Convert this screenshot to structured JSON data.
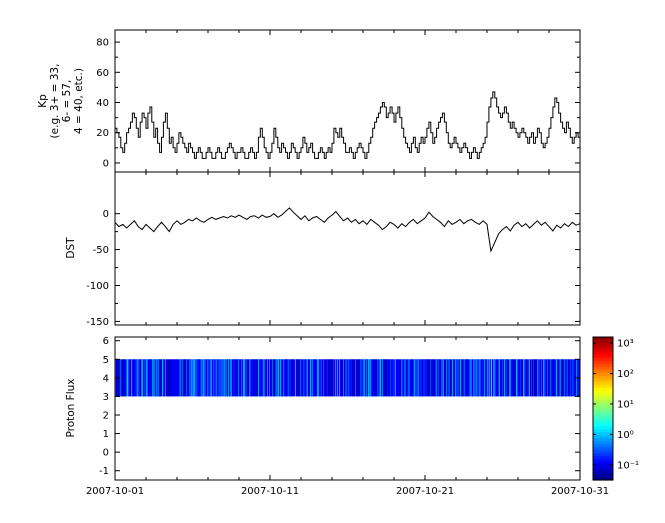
{
  "figure": {
    "background": "#ffffff",
    "axis_color": "#000000",
    "x_tick_labels": [
      "2007-10-01",
      "2007-10-11",
      "2007-10-21",
      "2007-10-31"
    ],
    "x_tick_days": [
      0,
      10,
      20,
      30
    ],
    "x_minor_step": 2,
    "x_total_days": 30
  },
  "chart_data": [
    {
      "type": "line",
      "name": "kp",
      "ylabel": "Kp (e.g. 3+ = 33, 6- = 57, 4 = 40, etc.)",
      "ylabel_lines": [
        "Kp",
        "(e.g. 3+ = 33,",
        "6- = 57,",
        "4 = 40, etc.)"
      ],
      "line_style": "step",
      "color": "#000000",
      "ylim": [
        -6,
        88
      ],
      "yticks": [
        0,
        20,
        40,
        60,
        80
      ],
      "yticks_minor": [
        10,
        30,
        50,
        70
      ],
      "x_start": "2007-10-01",
      "x_end": "2007-10-31",
      "points_per_day": 8,
      "values": [
        23,
        20,
        17,
        10,
        7,
        13,
        20,
        23,
        27,
        33,
        30,
        23,
        17,
        27,
        33,
        30,
        23,
        33,
        37,
        27,
        17,
        23,
        13,
        7,
        17,
        27,
        33,
        23,
        13,
        17,
        10,
        7,
        13,
        20,
        17,
        13,
        10,
        7,
        13,
        10,
        7,
        3,
        7,
        10,
        7,
        3,
        3,
        7,
        10,
        7,
        3,
        3,
        7,
        10,
        7,
        3,
        3,
        7,
        10,
        13,
        10,
        7,
        3,
        7,
        7,
        10,
        7,
        3,
        3,
        7,
        10,
        7,
        3,
        7,
        17,
        23,
        17,
        10,
        7,
        3,
        7,
        13,
        23,
        17,
        10,
        7,
        13,
        10,
        7,
        3,
        7,
        13,
        10,
        7,
        3,
        7,
        10,
        17,
        13,
        7,
        10,
        13,
        7,
        3,
        3,
        7,
        10,
        7,
        3,
        7,
        10,
        7,
        13,
        23,
        20,
        17,
        23,
        17,
        13,
        7,
        7,
        10,
        7,
        3,
        7,
        10,
        13,
        10,
        7,
        3,
        7,
        13,
        17,
        23,
        27,
        30,
        33,
        37,
        40,
        37,
        30,
        33,
        37,
        33,
        27,
        33,
        37,
        30,
        23,
        17,
        13,
        10,
        7,
        13,
        17,
        10,
        7,
        13,
        17,
        13,
        17,
        23,
        27,
        20,
        13,
        17,
        23,
        27,
        30,
        33,
        27,
        20,
        13,
        10,
        13,
        17,
        13,
        10,
        7,
        10,
        13,
        10,
        7,
        3,
        7,
        10,
        7,
        3,
        7,
        10,
        13,
        17,
        27,
        37,
        43,
        47,
        43,
        37,
        33,
        30,
        33,
        37,
        33,
        27,
        23,
        27,
        23,
        20,
        17,
        20,
        23,
        20,
        17,
        13,
        17,
        20,
        13,
        17,
        23,
        20,
        13,
        10,
        13,
        17,
        23,
        30,
        37,
        43,
        40,
        33,
        27,
        23,
        20,
        27,
        23,
        17,
        13,
        17,
        20,
        17
      ]
    },
    {
      "type": "line",
      "name": "dst",
      "ylabel": "DST",
      "line_style": "linear",
      "color": "#000000",
      "ylim": [
        -155,
        58
      ],
      "yticks": [
        0,
        -50,
        -100,
        -150
      ],
      "yticks_minor": [
        -25,
        -75,
        -125
      ],
      "x_start": "2007-10-01",
      "x_end": "2007-10-31",
      "points_per_day": 4,
      "values": [
        -12,
        -18,
        -15,
        -20,
        -15,
        -10,
        -18,
        -22,
        -15,
        -20,
        -25,
        -18,
        -12,
        -18,
        -25,
        -15,
        -10,
        -15,
        -12,
        -8,
        -10,
        -6,
        -10,
        -12,
        -8,
        -5,
        -8,
        -6,
        -4,
        -6,
        -3,
        -5,
        -2,
        -5,
        -8,
        -4,
        -3,
        -6,
        -2,
        -5,
        -4,
        0,
        -5,
        -2,
        3,
        8,
        2,
        -3,
        -8,
        -3,
        -10,
        -6,
        -4,
        -8,
        -12,
        -6,
        -2,
        3,
        -4,
        -10,
        -6,
        -12,
        -8,
        -14,
        -10,
        -15,
        -8,
        -12,
        -16,
        -22,
        -18,
        -12,
        -15,
        -20,
        -14,
        -18,
        -12,
        -8,
        -14,
        -10,
        -6,
        2,
        -4,
        -8,
        -12,
        -18,
        -10,
        -15,
        -12,
        -8,
        -14,
        -10,
        -8,
        -12,
        -15,
        -10,
        -15,
        -52,
        -40,
        -28,
        -22,
        -18,
        -24,
        -16,
        -12,
        -18,
        -14,
        -20,
        -15,
        -10,
        -16,
        -12,
        -18,
        -24,
        -16,
        -20,
        -14,
        -18,
        -12,
        -16,
        -14
      ]
    },
    {
      "type": "heatmap",
      "name": "flux",
      "ylabel": "Proton Flux",
      "ylim": [
        -1.5,
        6.2
      ],
      "yticks": [
        -1,
        0,
        1,
        2,
        3,
        4,
        5,
        6
      ],
      "yticks_minor": [],
      "x_start": "2007-10-01",
      "x_end": "2007-10-31",
      "band": {
        "y_min": 3,
        "y_max": 5,
        "description": "continuous low-intensity (blue) proton flux band spanning the whole month"
      },
      "flux_log10_range": [
        -1.2,
        -0.1
      ],
      "colormap": "jet",
      "colorbar": {
        "scale": "log",
        "ticks": [
          {
            "label": "10³",
            "exp": 3
          },
          {
            "label": "10²",
            "exp": 2
          },
          {
            "label": "10¹",
            "exp": 1
          },
          {
            "label": "10⁰",
            "exp": 0
          },
          {
            "label": "10⁻¹",
            "exp": -1
          }
        ]
      }
    }
  ]
}
